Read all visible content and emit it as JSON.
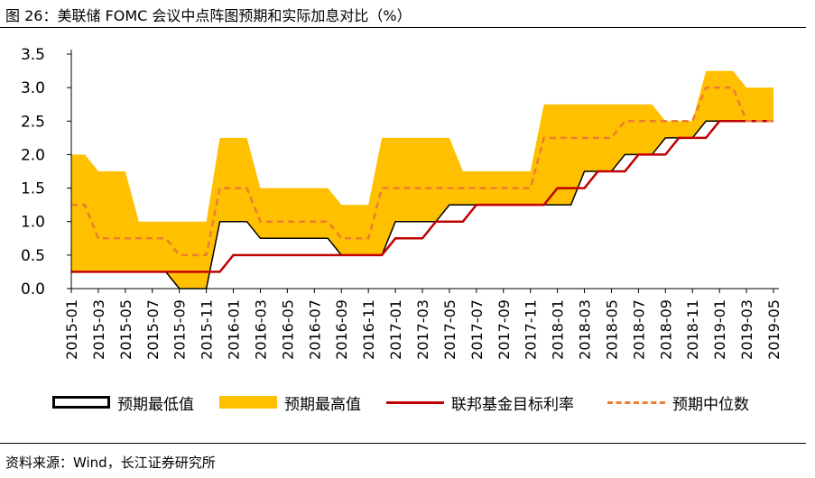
{
  "header": {
    "title": "图 26：美联储 FOMC 会议中点阵图预期和实际加息对比（%）"
  },
  "footer": {
    "source": "资料来源：Wind，长江证券研究所"
  },
  "colors": {
    "band": "#FFC000",
    "actual": "#C00000",
    "median": "#ED7D31",
    "low_edge": "#000000",
    "axis": "#000000"
  },
  "legend": {
    "low": "预期最低值",
    "high": "预期最高值",
    "actual": "联邦基金目标利率",
    "median": "预期中位数"
  },
  "chart_data": {
    "type": "area",
    "title": "",
    "xlabel": "",
    "ylabel": "",
    "ylim": [
      0,
      3.5
    ],
    "yticks": [
      "3.5",
      "3.0",
      "2.5",
      "2.0",
      "1.5",
      "1.0",
      "0.5",
      "0.0"
    ],
    "ytick_values": [
      3.5,
      3.0,
      2.5,
      2.0,
      1.5,
      1.0,
      0.5,
      0.0
    ],
    "x_tick_labels": [
      "2015-01",
      "2015-03",
      "2015-05",
      "2015-07",
      "2015-09",
      "2015-11",
      "2016-01",
      "2016-03",
      "2016-05",
      "2016-07",
      "2016-09",
      "2016-11",
      "2017-01",
      "2017-03",
      "2017-05",
      "2017-07",
      "2017-09",
      "2017-11",
      "2018-01",
      "2018-03",
      "2018-05",
      "2018-07",
      "2018-09",
      "2018-11",
      "2019-01",
      "2019-03",
      "2019-05"
    ],
    "legend_position": "bottom",
    "grid": false,
    "x": [
      "2015-01",
      "2015-02",
      "2015-03",
      "2015-04",
      "2015-05",
      "2015-06",
      "2015-07",
      "2015-08",
      "2015-09",
      "2015-10",
      "2015-11",
      "2015-12",
      "2016-01",
      "2016-02",
      "2016-03",
      "2016-04",
      "2016-05",
      "2016-06",
      "2016-07",
      "2016-08",
      "2016-09",
      "2016-10",
      "2016-11",
      "2016-12",
      "2017-01",
      "2017-02",
      "2017-03",
      "2017-04",
      "2017-05",
      "2017-06",
      "2017-07",
      "2017-08",
      "2017-09",
      "2017-10",
      "2017-11",
      "2017-12",
      "2018-01",
      "2018-02",
      "2018-03",
      "2018-04",
      "2018-05",
      "2018-06",
      "2018-07",
      "2018-08",
      "2018-09",
      "2018-10",
      "2018-11",
      "2018-12",
      "2019-01",
      "2019-02",
      "2019-03",
      "2019-04",
      "2019-05"
    ],
    "series": [
      {
        "name": "预期最低值",
        "values": [
          0.25,
          0.25,
          0.25,
          0.25,
          0.25,
          0.25,
          0.25,
          0.25,
          0,
          0,
          0,
          1,
          1,
          1,
          0.75,
          0.75,
          0.75,
          0.75,
          0.75,
          0.75,
          0.5,
          0.5,
          0.5,
          0.5,
          1,
          1,
          1,
          1,
          1.25,
          1.25,
          1.25,
          1.25,
          1.25,
          1.25,
          1.25,
          1.25,
          1.25,
          1.25,
          1.75,
          1.75,
          1.75,
          2,
          2,
          2,
          2.25,
          2.25,
          2.25,
          2.5,
          2.5,
          2.5,
          2.5,
          2.5,
          2.5
        ]
      },
      {
        "name": "预期最高值",
        "values": [
          2,
          2,
          1.75,
          1.75,
          1.75,
          1,
          1,
          1,
          1,
          1,
          1,
          2.25,
          2.25,
          2.25,
          1.5,
          1.5,
          1.5,
          1.5,
          1.5,
          1.5,
          1.25,
          1.25,
          1.25,
          2.25,
          2.25,
          2.25,
          2.25,
          2.25,
          2.25,
          1.75,
          1.75,
          1.75,
          1.75,
          1.75,
          1.75,
          2.75,
          2.75,
          2.75,
          2.75,
          2.75,
          2.75,
          2.75,
          2.75,
          2.75,
          2.5,
          2.5,
          2.5,
          3.25,
          3.25,
          3.25,
          3,
          3,
          3
        ]
      },
      {
        "name": "联邦基金目标利率",
        "values": [
          0.25,
          0.25,
          0.25,
          0.25,
          0.25,
          0.25,
          0.25,
          0.25,
          0.25,
          0.25,
          0.25,
          0.25,
          0.5,
          0.5,
          0.5,
          0.5,
          0.5,
          0.5,
          0.5,
          0.5,
          0.5,
          0.5,
          0.5,
          0.5,
          0.75,
          0.75,
          0.75,
          1,
          1,
          1,
          1.25,
          1.25,
          1.25,
          1.25,
          1.25,
          1.25,
          1.5,
          1.5,
          1.5,
          1.75,
          1.75,
          1.75,
          2,
          2,
          2,
          2.25,
          2.25,
          2.25,
          2.5,
          2.5,
          2.5,
          2.5,
          2.5
        ]
      },
      {
        "name": "预期中位数",
        "values": [
          1.25,
          1.25,
          0.75,
          0.75,
          0.75,
          0.75,
          0.75,
          0.75,
          0.5,
          0.5,
          0.5,
          1.5,
          1.5,
          1.5,
          1,
          1,
          1,
          1,
          1,
          1,
          0.75,
          0.75,
          0.75,
          1.5,
          1.5,
          1.5,
          1.5,
          1.5,
          1.5,
          1.5,
          1.5,
          1.5,
          1.5,
          1.5,
          1.5,
          2.25,
          2.25,
          2.25,
          2.25,
          2.25,
          2.25,
          2.5,
          2.5,
          2.5,
          2.5,
          2.5,
          2.5,
          3,
          3,
          3,
          2.5,
          2.5,
          2.5
        ]
      }
    ]
  }
}
